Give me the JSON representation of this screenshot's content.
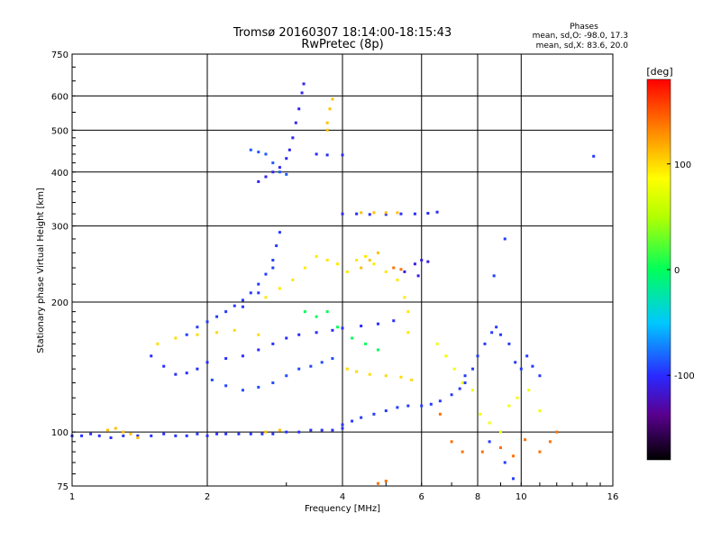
{
  "chart_data": {
    "type": "scatter",
    "title": "Tromsø 20160307 18:14:00-18:15:43",
    "subtitle": "RwPretec (8p)",
    "xlabel": "Frequency [MHz]",
    "ylabel": "Stationary phase Virtual Height [km]",
    "x_scale": "log",
    "y_scale": "log",
    "xlim": [
      1,
      16
    ],
    "ylim": [
      75,
      750
    ],
    "x_ticks": [
      "1",
      "2",
      "4",
      "6",
      "8",
      "10",
      "16"
    ],
    "x_tick_values": [
      1,
      2,
      4,
      6,
      8,
      10,
      16
    ],
    "y_ticks": [
      "75",
      "100",
      "200",
      "300",
      "400",
      "500",
      "600",
      "750"
    ],
    "y_tick_values": [
      75,
      100,
      200,
      300,
      400,
      500,
      600,
      750
    ],
    "grid": true,
    "stats": {
      "heading": "Phases",
      "line1": "mean, sd,O: -98.0, 17.3",
      "line2": "mean, sd,X:  83.6, 20.0"
    },
    "colorbar": {
      "unit": "[deg]",
      "ticks": [
        "100",
        "0",
        "-100"
      ],
      "tick_values": [
        100,
        0,
        -100
      ],
      "range": [
        -180,
        180
      ],
      "colormap": "rainbow"
    },
    "series": [
      {
        "trace": "ground-echo",
        "phase": -98,
        "points": [
          [
            1.0,
            98
          ],
          [
            1.05,
            98
          ],
          [
            1.1,
            99
          ],
          [
            1.15,
            98
          ],
          [
            1.22,
            97
          ],
          [
            1.3,
            98
          ],
          [
            1.4,
            98
          ],
          [
            1.5,
            98
          ],
          [
            1.6,
            99
          ],
          [
            1.7,
            98
          ],
          [
            1.8,
            98
          ],
          [
            1.9,
            99
          ],
          [
            2.0,
            98
          ],
          [
            2.1,
            99
          ],
          [
            2.2,
            99
          ],
          [
            2.35,
            99
          ],
          [
            2.5,
            99
          ],
          [
            2.65,
            99
          ],
          [
            2.8,
            99
          ],
          [
            3.0,
            100
          ],
          [
            3.2,
            100
          ],
          [
            3.4,
            101
          ],
          [
            3.6,
            101
          ],
          [
            3.8,
            101
          ],
          [
            4.0,
            102
          ]
        ]
      },
      {
        "trace": "ground-echo",
        "phase": 110,
        "points": [
          [
            1.2,
            101
          ],
          [
            1.25,
            102
          ],
          [
            1.3,
            100
          ],
          [
            1.35,
            99
          ],
          [
            1.4,
            97
          ],
          [
            2.7,
            100
          ],
          [
            2.9,
            101
          ]
        ]
      },
      {
        "trace": "E-rising",
        "phase": -95,
        "points": [
          [
            4.0,
            104
          ],
          [
            4.2,
            106
          ],
          [
            4.4,
            108
          ],
          [
            4.7,
            110
          ],
          [
            5.0,
            112
          ],
          [
            5.3,
            114
          ],
          [
            5.6,
            115
          ],
          [
            6.0,
            115
          ],
          [
            6.3,
            116
          ],
          [
            6.6,
            118
          ],
          [
            7.0,
            122
          ],
          [
            7.3,
            126
          ],
          [
            7.5,
            130
          ]
        ]
      },
      {
        "trace": "lower-F",
        "phase": -100,
        "points": [
          [
            1.5,
            150
          ],
          [
            1.6,
            142
          ],
          [
            1.7,
            136
          ],
          [
            1.8,
            137
          ],
          [
            1.9,
            140
          ],
          [
            2.0,
            145
          ],
          [
            2.2,
            148
          ],
          [
            2.4,
            150
          ],
          [
            2.6,
            155
          ],
          [
            2.8,
            160
          ],
          [
            3.0,
            165
          ],
          [
            3.2,
            168
          ],
          [
            3.5,
            170
          ],
          [
            3.8,
            172
          ],
          [
            4.0,
            174
          ],
          [
            4.4,
            176
          ],
          [
            4.8,
            178
          ],
          [
            5.2,
            181
          ]
        ]
      },
      {
        "trace": "lower-F",
        "phase": -90,
        "points": [
          [
            2.05,
            132
          ],
          [
            2.2,
            128
          ],
          [
            2.4,
            125
          ],
          [
            2.6,
            127
          ],
          [
            2.8,
            130
          ],
          [
            3.0,
            135
          ],
          [
            3.2,
            140
          ],
          [
            3.4,
            142
          ],
          [
            3.6,
            145
          ],
          [
            3.8,
            148
          ]
        ]
      },
      {
        "trace": "lower-F-X",
        "phase": 100,
        "points": [
          [
            1.55,
            160
          ],
          [
            1.7,
            165
          ],
          [
            1.9,
            168
          ],
          [
            2.1,
            170
          ],
          [
            2.3,
            172
          ],
          [
            2.6,
            168
          ],
          [
            4.1,
            140
          ],
          [
            4.3,
            138
          ],
          [
            4.6,
            136
          ],
          [
            5.0,
            135
          ],
          [
            5.4,
            134
          ],
          [
            5.7,
            132
          ]
        ]
      },
      {
        "trace": "F-rising",
        "phase": -95,
        "points": [
          [
            1.8,
            168
          ],
          [
            1.9,
            175
          ],
          [
            2.0,
            180
          ],
          [
            2.1,
            185
          ],
          [
            2.2,
            190
          ],
          [
            2.3,
            196
          ],
          [
            2.4,
            202
          ],
          [
            2.5,
            210
          ],
          [
            2.6,
            220
          ],
          [
            2.7,
            232
          ],
          [
            2.8,
            250
          ],
          [
            2.85,
            270
          ],
          [
            2.9,
            290
          ],
          [
            2.8,
            240
          ],
          [
            2.6,
            210
          ],
          [
            2.4,
            195
          ]
        ]
      },
      {
        "trace": "F-rising-X",
        "phase": 95,
        "points": [
          [
            2.7,
            205
          ],
          [
            2.9,
            215
          ],
          [
            3.1,
            225
          ],
          [
            3.3,
            240
          ],
          [
            3.5,
            255
          ],
          [
            3.7,
            250
          ],
          [
            3.9,
            245
          ],
          [
            4.1,
            235
          ],
          [
            4.3,
            250
          ],
          [
            4.5,
            255
          ],
          [
            4.7,
            245
          ],
          [
            5.0,
            235
          ],
          [
            5.3,
            225
          ],
          [
            5.5,
            205
          ],
          [
            5.6,
            190
          ],
          [
            5.6,
            170
          ]
        ]
      },
      {
        "trace": "F-upper",
        "phase": -105,
        "points": [
          [
            2.6,
            380
          ],
          [
            2.7,
            390
          ],
          [
            2.8,
            400
          ],
          [
            2.9,
            410
          ],
          [
            3.0,
            430
          ],
          [
            3.05,
            450
          ],
          [
            3.1,
            480
          ],
          [
            3.15,
            520
          ],
          [
            3.2,
            560
          ],
          [
            3.25,
            610
          ],
          [
            3.28,
            640
          ]
        ]
      },
      {
        "trace": "F-upper",
        "phase": -85,
        "points": [
          [
            2.5,
            450
          ],
          [
            2.6,
            445
          ],
          [
            2.7,
            440
          ],
          [
            2.8,
            420
          ],
          [
            2.9,
            400
          ],
          [
            3.0,
            395
          ]
        ]
      },
      {
        "trace": "multi-hop",
        "phase": -100,
        "points": [
          [
            4.0,
            320
          ],
          [
            4.3,
            320
          ],
          [
            4.6,
            319
          ],
          [
            5.0,
            319
          ],
          [
            5.4,
            320
          ],
          [
            5.8,
            320
          ],
          [
            6.2,
            321
          ],
          [
            6.5,
            323
          ],
          [
            3.5,
            440
          ],
          [
            3.7,
            438
          ],
          [
            4.0,
            438
          ]
        ]
      },
      {
        "trace": "multi-hop-X",
        "phase": 110,
        "points": [
          [
            4.4,
            322
          ],
          [
            4.7,
            322
          ],
          [
            5.0,
            322
          ],
          [
            5.3,
            322
          ],
          [
            3.7,
            520
          ],
          [
            3.75,
            560
          ],
          [
            3.8,
            590
          ],
          [
            3.7,
            500
          ],
          [
            4.4,
            240
          ],
          [
            4.6,
            250
          ],
          [
            4.8,
            260
          ]
        ]
      },
      {
        "trace": "multi-hop",
        "phase": -110,
        "points": [
          [
            5.5,
            235
          ],
          [
            5.8,
            245
          ],
          [
            6.0,
            250
          ],
          [
            6.2,
            248
          ],
          [
            5.9,
            230
          ]
        ]
      },
      {
        "trace": "scatter-high-freq",
        "phase": 140,
        "points": [
          [
            5.2,
            240
          ],
          [
            5.4,
            238
          ],
          [
            6.6,
            110
          ],
          [
            7.0,
            95
          ],
          [
            7.4,
            90
          ],
          [
            8.2,
            90
          ],
          [
            9.0,
            92
          ],
          [
            9.6,
            88
          ],
          [
            10.2,
            96
          ],
          [
            11.0,
            90
          ],
          [
            11.6,
            95
          ],
          [
            12.0,
            100
          ],
          [
            5.0,
            77
          ],
          [
            4.8,
            76
          ]
        ]
      },
      {
        "trace": "scatter-high-freq",
        "phase": 80,
        "points": [
          [
            6.5,
            160
          ],
          [
            6.8,
            150
          ],
          [
            7.1,
            140
          ],
          [
            7.4,
            130
          ],
          [
            7.8,
            125
          ],
          [
            8.1,
            110
          ],
          [
            8.5,
            105
          ],
          [
            9.0,
            100
          ],
          [
            9.4,
            115
          ],
          [
            9.8,
            120
          ],
          [
            10.4,
            125
          ],
          [
            11.0,
            112
          ]
        ]
      },
      {
        "trace": "scatter-high-freq",
        "phase": -95,
        "points": [
          [
            7.5,
            135
          ],
          [
            7.8,
            140
          ],
          [
            8.0,
            150
          ],
          [
            8.3,
            160
          ],
          [
            8.6,
            170
          ],
          [
            8.8,
            175
          ],
          [
            9.0,
            168
          ],
          [
            9.4,
            160
          ],
          [
            9.7,
            145
          ],
          [
            10.0,
            140
          ],
          [
            10.3,
            150
          ],
          [
            10.6,
            142
          ],
          [
            11.0,
            135
          ],
          [
            8.5,
            95
          ],
          [
            9.2,
            85
          ],
          [
            9.6,
            78
          ],
          [
            14.5,
            435
          ],
          [
            9.2,
            280
          ],
          [
            8.7,
            230
          ]
        ]
      },
      {
        "trace": "ghost",
        "phase": 0,
        "points": [
          [
            3.3,
            190
          ],
          [
            3.5,
            185
          ],
          [
            3.7,
            190
          ],
          [
            3.9,
            175
          ],
          [
            4.2,
            165
          ],
          [
            4.5,
            160
          ],
          [
            4.8,
            155
          ]
        ]
      }
    ]
  }
}
